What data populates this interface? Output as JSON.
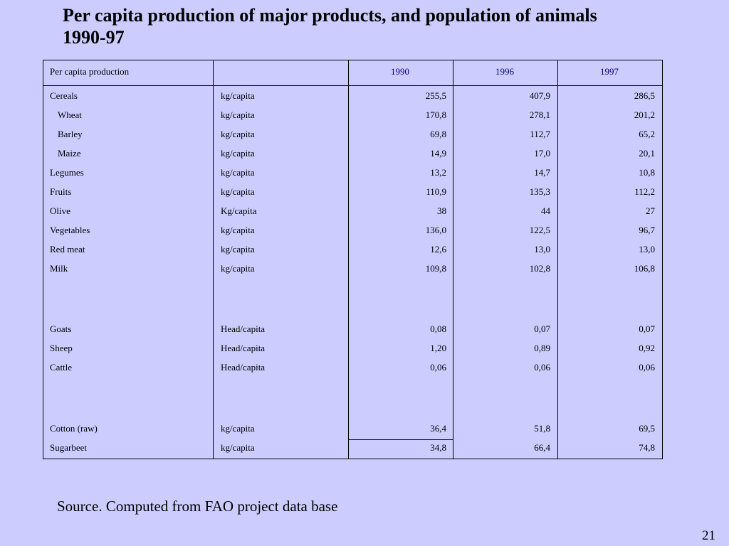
{
  "title": {
    "line1": "Per capita production of major products, and population of animals",
    "line2": "1990-97"
  },
  "table": {
    "header_label": "Per capita production",
    "years": [
      "1990",
      "1996",
      "1997"
    ],
    "rows": [
      {
        "name": "Cereals",
        "indent": false,
        "unit": "kg/capita",
        "v1990": "255,5",
        "v1996": "407,9",
        "v1997": "286,5"
      },
      {
        "name": "Wheat",
        "indent": true,
        "unit": "kg/capita",
        "v1990": "170,8",
        "v1996": "278,1",
        "v1997": "201,2"
      },
      {
        "name": "Barley",
        "indent": true,
        "unit": "kg/capita",
        "v1990": "69,8",
        "v1996": "112,7",
        "v1997": "65,2"
      },
      {
        "name": "Maize",
        "indent": true,
        "unit": "kg/capita",
        "v1990": "14,9",
        "v1996": "17,0",
        "v1997": "20,1"
      },
      {
        "name": "Legumes",
        "indent": false,
        "unit": "kg/capita",
        "v1990": "13,2",
        "v1996": "14,7",
        "v1997": "10,8"
      },
      {
        "name": "Fruits",
        "indent": false,
        "unit": "kg/capita",
        "v1990": "110,9",
        "v1996": "135,3",
        "v1997": "112,2"
      },
      {
        "name": "Olive",
        "indent": false,
        "unit": "Kg/capita",
        "v1990": "38",
        "v1996": "44",
        "v1997": "27"
      },
      {
        "name": "Vegetables",
        "indent": false,
        "unit": "kg/capita",
        "v1990": "136,0",
        "v1996": "122,5",
        "v1997": "96,7"
      },
      {
        "name": "Red meat",
        "indent": false,
        "unit": "kg/capita",
        "v1990": "12,6",
        "v1996": "13,0",
        "v1997": "13,0"
      },
      {
        "name": "Milk",
        "indent": false,
        "unit": "kg/capita",
        "v1990": "109,8",
        "v1996": "102,8",
        "v1997": "106,8"
      },
      {
        "name": "Goats",
        "indent": false,
        "unit": "Head/capita",
        "v1990": "0,08",
        "v1996": "0,07",
        "v1997": "0,07"
      },
      {
        "name": "Sheep",
        "indent": false,
        "unit": "Head/capita",
        "v1990": "1,20",
        "v1996": "0,89",
        "v1997": "0,92"
      },
      {
        "name": "Cattle",
        "indent": false,
        "unit": "Head/capita",
        "v1990": "0,06",
        "v1996": "0,06",
        "v1997": "0,06"
      },
      {
        "name": "Cotton (raw)",
        "indent": false,
        "unit": "kg/capita",
        "v1990": "36,4",
        "v1996": "51,8",
        "v1997": "69,5"
      },
      {
        "name": "Sugarbeet",
        "indent": false,
        "unit": "kg/capita",
        "v1990": "34,8",
        "v1996": "66,4",
        "v1997": "74,8"
      }
    ]
  },
  "source": "Source. Computed from FAO project data base",
  "page_number": "21"
}
